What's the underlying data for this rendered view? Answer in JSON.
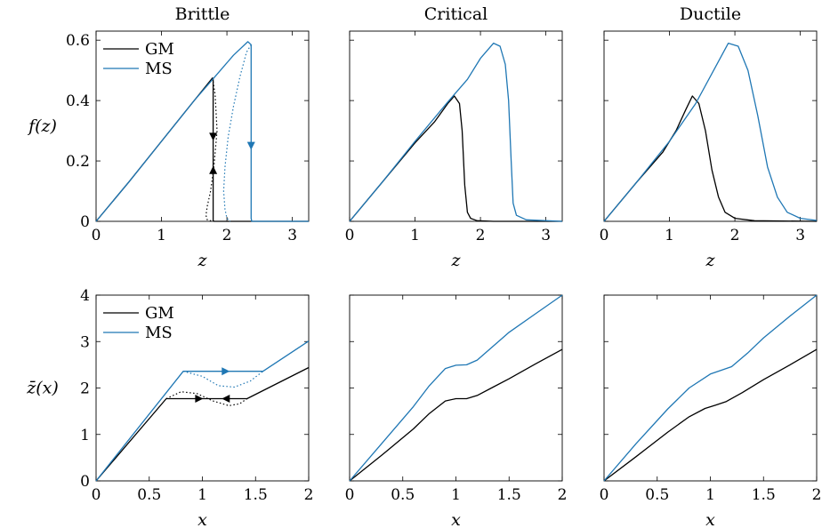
{
  "chart_data": [
    {
      "type": "line",
      "column": 0,
      "row": 0,
      "title": "Brittle",
      "xlabel": "z",
      "ylabel": "f(z)",
      "xlim": [
        0,
        3.25
      ],
      "ylim": [
        0,
        0.63
      ],
      "xticks": [
        "0",
        "1",
        "2",
        "3"
      ],
      "yticks": [
        "0",
        "0.2",
        "0.4",
        "0.6"
      ],
      "legend": [
        "GM",
        "MS"
      ],
      "legend_position": "top-left",
      "series": [
        {
          "name": "GM",
          "color": "#000000",
          "style": "solid",
          "x": [
            0,
            0.5,
            1.0,
            1.5,
            1.78,
            1.79,
            1.79,
            1.8,
            1.9,
            3.25
          ],
          "y": [
            0,
            0.13,
            0.265,
            0.4,
            0.475,
            0.47,
            0.003,
            0,
            0,
            0
          ]
        },
        {
          "color": "#000000",
          "style": "dotted",
          "x": [
            1.78,
            1.82,
            1.85,
            1.8,
            1.75,
            1.7,
            1.68,
            1.7,
            1.78
          ],
          "y": [
            0.475,
            0.42,
            0.3,
            0.18,
            0.1,
            0.05,
            0.02,
            0.005,
            0
          ]
        },
        {
          "name": "MS",
          "color": "#1f77b4",
          "style": "solid",
          "x": [
            0,
            0.5,
            1.0,
            1.5,
            1.8,
            2.1,
            2.32,
            2.37,
            2.37,
            2.38,
            3.25
          ],
          "y": [
            0,
            0.13,
            0.265,
            0.4,
            0.475,
            0.55,
            0.595,
            0.585,
            0.01,
            0,
            0
          ]
        },
        {
          "color": "#1f77b4",
          "style": "dotted",
          "x": [
            2.37,
            2.3,
            2.2,
            2.1,
            2.02,
            1.97,
            1.95,
            1.97,
            2.0,
            2.05
          ],
          "y": [
            0.585,
            0.56,
            0.48,
            0.38,
            0.28,
            0.18,
            0.1,
            0.04,
            0.01,
            0
          ]
        }
      ]
    },
    {
      "type": "line",
      "column": 1,
      "row": 0,
      "title": "Critical",
      "xlabel": "z",
      "ylabel": "",
      "xlim": [
        0,
        3.25
      ],
      "ylim": [
        0,
        0.63
      ],
      "xticks": [
        "0",
        "1",
        "2",
        "3"
      ],
      "yticks": [],
      "series": [
        {
          "color": "#000000",
          "style": "solid",
          "x": [
            0,
            0.5,
            1.0,
            1.3,
            1.5,
            1.6,
            1.68,
            1.72,
            1.76,
            1.8,
            1.85,
            1.95,
            2.2,
            3.25
          ],
          "y": [
            0,
            0.13,
            0.26,
            0.33,
            0.39,
            0.415,
            0.39,
            0.3,
            0.12,
            0.03,
            0.01,
            0.002,
            0,
            0
          ]
        },
        {
          "color": "#1f77b4",
          "style": "solid",
          "x": [
            0,
            0.5,
            1.0,
            1.5,
            1.8,
            2.0,
            2.2,
            2.3,
            2.38,
            2.43,
            2.47,
            2.5,
            2.55,
            2.7,
            3.25
          ],
          "y": [
            0,
            0.13,
            0.265,
            0.395,
            0.47,
            0.54,
            0.59,
            0.58,
            0.52,
            0.4,
            0.2,
            0.06,
            0.02,
            0.005,
            0
          ]
        }
      ]
    },
    {
      "type": "line",
      "column": 2,
      "row": 0,
      "title": "Ductile",
      "xlabel": "z",
      "ylabel": "",
      "xlim": [
        0,
        3.25
      ],
      "ylim": [
        0,
        0.63
      ],
      "xticks": [
        "0",
        "1",
        "2",
        "3"
      ],
      "yticks": [],
      "series": [
        {
          "color": "#000000",
          "style": "solid",
          "x": [
            0,
            0.5,
            0.9,
            1.1,
            1.25,
            1.35,
            1.45,
            1.55,
            1.65,
            1.75,
            1.85,
            2.0,
            2.3,
            3.25
          ],
          "y": [
            0,
            0.13,
            0.23,
            0.3,
            0.37,
            0.415,
            0.39,
            0.3,
            0.17,
            0.08,
            0.03,
            0.01,
            0.002,
            0
          ]
        },
        {
          "color": "#1f77b4",
          "style": "solid",
          "x": [
            0,
            0.5,
            1.0,
            1.4,
            1.7,
            1.9,
            2.05,
            2.2,
            2.35,
            2.5,
            2.65,
            2.8,
            3.0,
            3.25
          ],
          "y": [
            0,
            0.13,
            0.265,
            0.39,
            0.51,
            0.59,
            0.58,
            0.5,
            0.35,
            0.18,
            0.08,
            0.03,
            0.01,
            0.003
          ]
        }
      ]
    },
    {
      "type": "line",
      "column": 0,
      "row": 1,
      "title": "",
      "xlabel": "x",
      "ylabel": "z̄(x)",
      "xlim": [
        0,
        2
      ],
      "ylim": [
        0,
        4
      ],
      "xticks": [
        "0",
        "0.5",
        "1",
        "1.5",
        "2"
      ],
      "yticks": [
        "0",
        "1",
        "2",
        "3",
        "4"
      ],
      "legend": [
        "GM",
        "MS"
      ],
      "legend_position": "top-left",
      "series": [
        {
          "name": "GM",
          "color": "#000000",
          "style": "solid",
          "x": [
            0,
            0.66,
            1.42,
            2.0
          ],
          "y": [
            0,
            1.77,
            1.77,
            2.44
          ]
        },
        {
          "color": "#000000",
          "style": "dotted",
          "x": [
            0.66,
            0.8,
            0.95,
            1.1,
            1.25,
            1.35,
            1.42
          ],
          "y": [
            1.77,
            1.92,
            1.88,
            1.72,
            1.62,
            1.66,
            1.77
          ]
        },
        {
          "name": "MS",
          "color": "#1f77b4",
          "style": "solid",
          "x": [
            0,
            0.82,
            1.57,
            2.0
          ],
          "y": [
            0,
            2.36,
            2.36,
            3.01
          ]
        },
        {
          "color": "#1f77b4",
          "style": "dotted",
          "x": [
            0.82,
            1.0,
            1.15,
            1.3,
            1.45,
            1.57
          ],
          "y": [
            2.36,
            2.25,
            2.05,
            2.02,
            2.15,
            2.36
          ]
        }
      ]
    },
    {
      "type": "line",
      "column": 1,
      "row": 1,
      "title": "",
      "xlabel": "x",
      "ylabel": "",
      "xlim": [
        0,
        2
      ],
      "ylim": [
        0,
        4
      ],
      "xticks": [
        "0",
        "0.5",
        "1",
        "1.5",
        "2"
      ],
      "yticks": [],
      "series": [
        {
          "color": "#000000",
          "style": "solid",
          "x": [
            0,
            0.3,
            0.6,
            0.75,
            0.9,
            1.0,
            1.1,
            1.2,
            1.35,
            1.5,
            1.75,
            2.0
          ],
          "y": [
            0,
            0.55,
            1.12,
            1.45,
            1.72,
            1.77,
            1.77,
            1.84,
            2.02,
            2.2,
            2.52,
            2.83
          ]
        },
        {
          "color": "#1f77b4",
          "style": "solid",
          "x": [
            0,
            0.3,
            0.6,
            0.75,
            0.9,
            1.0,
            1.1,
            1.2,
            1.35,
            1.5,
            1.75,
            2.0
          ],
          "y": [
            0,
            0.8,
            1.6,
            2.05,
            2.42,
            2.49,
            2.5,
            2.6,
            2.9,
            3.2,
            3.6,
            4.0
          ]
        }
      ]
    },
    {
      "type": "line",
      "column": 2,
      "row": 1,
      "title": "",
      "xlabel": "x",
      "ylabel": "",
      "xlim": [
        0,
        2
      ],
      "ylim": [
        0,
        4
      ],
      "xticks": [
        "0",
        "0.5",
        "1",
        "1.5",
        "2"
      ],
      "yticks": [],
      "series": [
        {
          "color": "#000000",
          "style": "solid",
          "x": [
            0,
            0.3,
            0.6,
            0.8,
            0.95,
            1.05,
            1.15,
            1.3,
            1.5,
            1.75,
            2.0
          ],
          "y": [
            0,
            0.52,
            1.05,
            1.38,
            1.56,
            1.63,
            1.71,
            1.9,
            2.18,
            2.5,
            2.83
          ]
        },
        {
          "color": "#1f77b4",
          "style": "solid",
          "x": [
            0,
            0.3,
            0.6,
            0.8,
            1.0,
            1.1,
            1.2,
            1.35,
            1.5,
            1.75,
            2.0
          ],
          "y": [
            0,
            0.8,
            1.55,
            2.0,
            2.3,
            2.38,
            2.46,
            2.75,
            3.08,
            3.55,
            4.0
          ]
        }
      ]
    }
  ]
}
